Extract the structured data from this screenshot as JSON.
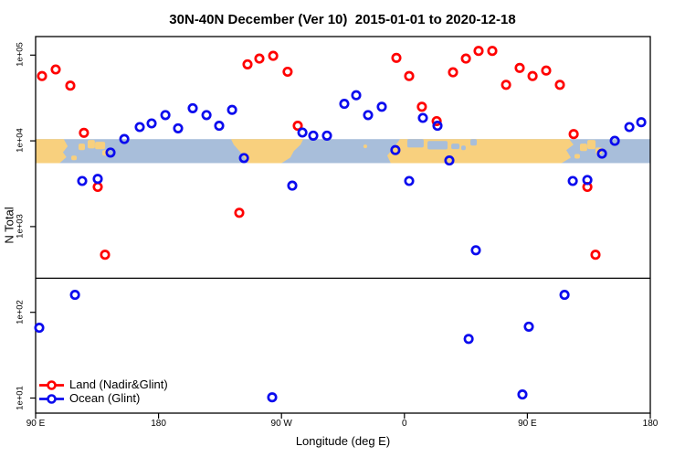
{
  "title": "30N-40N December (Ver 10)  2015-01-01 to 2020-12-18",
  "chart_data": {
    "type": "scatter",
    "title": "30N-40N December (Ver 10)  2015-01-01 to 2020-12-18",
    "xlabel": "Longitude (deg E)",
    "ylabel": "N Total",
    "x_axis": {
      "note": "longitude axis wraps eastward from 90E through dateline to 180",
      "lon_start": 90,
      "lon_end": 540,
      "tick_lons": [
        90,
        180,
        270,
        360,
        450,
        540
      ],
      "tick_labels": [
        "90 E",
        "180",
        "90 W",
        "0",
        "90 E",
        "180"
      ]
    },
    "y_axis": {
      "scale": "log10",
      "tick_values": [
        10,
        100,
        1000,
        10000,
        100000
      ],
      "tick_labels": [
        "1e+01",
        "1e+02",
        "1e+03",
        "1e+04",
        "1e+05"
      ],
      "ylim": [
        7,
        180000
      ]
    },
    "hline_value": 250,
    "map_band": {
      "description": "30N-40N world map strip drawn across the plot",
      "value_top": 10500,
      "value_bottom": 5500,
      "land_color": "#F8D07E",
      "ocean_color": "#A8BEDA",
      "land_polys": [
        [
          [
            90,
            0
          ],
          [
            110.5,
            0
          ],
          [
            113.5,
            0.3
          ],
          [
            110,
            0.55
          ],
          [
            112.5,
            0.75
          ],
          [
            107.5,
            1
          ],
          [
            90,
            1
          ]
        ],
        [
          [
            233,
            0
          ],
          [
            286,
            0
          ],
          [
            284,
            0.23
          ],
          [
            279,
            0.5
          ],
          [
            276.5,
            0.77
          ],
          [
            270,
            1
          ],
          [
            245.8,
            1
          ],
          [
            241,
            0.62
          ],
          [
            235,
            0.23
          ]
        ],
        [
          [
            356.8,
            0
          ],
          [
            480.5,
            0
          ],
          [
            483.8,
            0.23
          ],
          [
            478.5,
            0.46
          ],
          [
            481.8,
            0.77
          ],
          [
            475,
            1
          ],
          [
            350,
            1
          ],
          [
            347.4,
            0.69
          ],
          [
            352.8,
            0.31
          ]
        ]
      ],
      "land_patches": [
        {
          "lon": 121.4,
          "dlon": 4.7,
          "f": 0.19,
          "df": 0.27
        },
        {
          "lon": 128.1,
          "dlon": 5.3,
          "f": 0.04,
          "df": 0.35
        },
        {
          "lon": 133.5,
          "dlon": 7.4,
          "f": 0.115,
          "df": 0.31
        },
        {
          "lon": 138.8,
          "dlon": 4.7,
          "f": 0.46,
          "df": 0.23
        },
        {
          "lon": 116.1,
          "dlon": 4.0,
          "f": 0.69,
          "df": 0.19
        },
        {
          "lon": 488.5,
          "dlon": 5.3,
          "f": 0.19,
          "df": 0.31
        },
        {
          "lon": 493.9,
          "dlon": 6.0,
          "f": 0.04,
          "df": 0.38
        },
        {
          "lon": 499.9,
          "dlon": 4.7,
          "f": 0.35,
          "df": 0.27
        },
        {
          "lon": 484.5,
          "dlon": 4.0,
          "f": 0.62,
          "df": 0.19
        },
        {
          "lon": 330.0,
          "dlon": 2.7,
          "f": 0.23,
          "df": 0.15
        }
      ],
      "sea_patches": [
        {
          "lon": 362.1,
          "dlon": 12.0,
          "f": 0.0,
          "df": 0.35
        },
        {
          "lon": 376.9,
          "dlon": 14.7,
          "f": 0.08,
          "df": 0.35
        },
        {
          "lon": 394.3,
          "dlon": 6.0,
          "f": 0.19,
          "df": 0.23
        },
        {
          "lon": 408.3,
          "dlon": 4.7,
          "f": 0.0,
          "df": 0.27
        },
        {
          "lon": 401.6,
          "dlon": 3.3,
          "f": 0.27,
          "df": 0.19
        }
      ]
    },
    "series": [
      {
        "name": "Land (Nadir&Glint)",
        "color": "#FF0000",
        "symbol": "open-circle",
        "points": [
          {
            "lon": 94.7,
            "v": 57000
          },
          {
            "lon": 104.7,
            "v": 68000
          },
          {
            "lon": 115.4,
            "v": 44000
          },
          {
            "lon": 125.4,
            "v": 12400
          },
          {
            "lon": 135.5,
            "v": 2900
          },
          {
            "lon": 140.8,
            "v": 470
          },
          {
            "lon": 239.1,
            "v": 1450
          },
          {
            "lon": 245.1,
            "v": 78000
          },
          {
            "lon": 253.8,
            "v": 91000
          },
          {
            "lon": 263.9,
            "v": 98000
          },
          {
            "lon": 274.5,
            "v": 64000
          },
          {
            "lon": 281.9,
            "v": 15000
          },
          {
            "lon": 354.1,
            "v": 93000
          },
          {
            "lon": 363.5,
            "v": 57000
          },
          {
            "lon": 372.8,
            "v": 25000
          },
          {
            "lon": 383.6,
            "v": 17000
          },
          {
            "lon": 395.6,
            "v": 63000
          },
          {
            "lon": 405.0,
            "v": 91000
          },
          {
            "lon": 414.3,
            "v": 112000
          },
          {
            "lon": 424.3,
            "v": 112000
          },
          {
            "lon": 434.4,
            "v": 45000
          },
          {
            "lon": 444.4,
            "v": 71000
          },
          {
            "lon": 453.8,
            "v": 57000
          },
          {
            "lon": 463.8,
            "v": 66000
          },
          {
            "lon": 473.8,
            "v": 45000
          },
          {
            "lon": 483.9,
            "v": 12000
          },
          {
            "lon": 493.9,
            "v": 2900
          },
          {
            "lon": 499.9,
            "v": 470
          }
        ]
      },
      {
        "name": "Ocean (Glint)",
        "color": "#0B0BEE",
        "symbol": "open-circle",
        "points": [
          {
            "lon": 92.7,
            "v": 66
          },
          {
            "lon": 118.8,
            "v": 160
          },
          {
            "lon": 124.1,
            "v": 3400
          },
          {
            "lon": 135.5,
            "v": 3600
          },
          {
            "lon": 144.8,
            "v": 7300
          },
          {
            "lon": 154.9,
            "v": 10500
          },
          {
            "lon": 166.2,
            "v": 14500
          },
          {
            "lon": 174.9,
            "v": 16000
          },
          {
            "lon": 185.0,
            "v": 20000
          },
          {
            "lon": 194.3,
            "v": 14000
          },
          {
            "lon": 205.0,
            "v": 24000
          },
          {
            "lon": 215.1,
            "v": 20000
          },
          {
            "lon": 224.4,
            "v": 15000
          },
          {
            "lon": 233.8,
            "v": 23000
          },
          {
            "lon": 242.5,
            "v": 6300
          },
          {
            "lon": 263.2,
            "v": 10.2
          },
          {
            "lon": 277.9,
            "v": 3000
          },
          {
            "lon": 285.3,
            "v": 12500
          },
          {
            "lon": 293.3,
            "v": 11500
          },
          {
            "lon": 303.3,
            "v": 11500
          },
          {
            "lon": 316.0,
            "v": 27000
          },
          {
            "lon": 324.7,
            "v": 34000
          },
          {
            "lon": 333.4,
            "v": 20000
          },
          {
            "lon": 343.4,
            "v": 25000
          },
          {
            "lon": 353.4,
            "v": 7800
          },
          {
            "lon": 363.5,
            "v": 3400
          },
          {
            "lon": 373.5,
            "v": 18500
          },
          {
            "lon": 384.2,
            "v": 15000
          },
          {
            "lon": 392.9,
            "v": 5900
          },
          {
            "lon": 407.0,
            "v": 49
          },
          {
            "lon": 412.3,
            "v": 530
          },
          {
            "lon": 446.4,
            "v": 11
          },
          {
            "lon": 451.1,
            "v": 68
          },
          {
            "lon": 477.2,
            "v": 160
          },
          {
            "lon": 483.2,
            "v": 3400
          },
          {
            "lon": 493.9,
            "v": 3500
          },
          {
            "lon": 504.6,
            "v": 7100
          },
          {
            "lon": 514.0,
            "v": 10000
          },
          {
            "lon": 524.7,
            "v": 14500
          },
          {
            "lon": 533.4,
            "v": 16500
          }
        ]
      }
    ],
    "legend": {
      "position": "bottom-left",
      "entries": [
        {
          "label": "Land (Nadir&Glint)",
          "color": "#FF0000"
        },
        {
          "label": "Ocean (Glint)",
          "color": "#0B0BEE"
        }
      ]
    }
  }
}
